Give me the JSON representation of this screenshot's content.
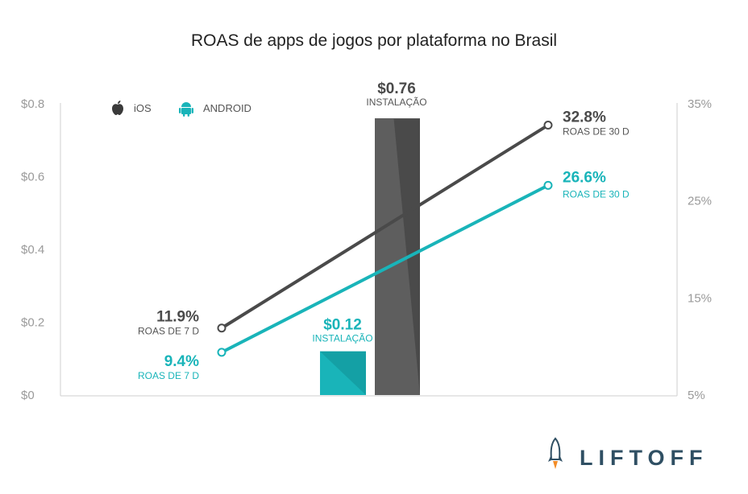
{
  "chart_data": {
    "type": "bar",
    "title": "ROAS de apps de jogos por plataforma no Brasil",
    "colors": {
      "ios": "#4a4a4a",
      "android": "#19b4b9"
    },
    "legend": {
      "placement": "top-left",
      "items": [
        {
          "name": "iOS",
          "icon": "apple-icon"
        },
        {
          "name": "ANDROID",
          "icon": "android-icon"
        }
      ]
    },
    "y_left": {
      "ticks": [
        "$0.8",
        "$0.6",
        "$0.4",
        "$0.2",
        "$0"
      ],
      "range": [
        0,
        0.8
      ]
    },
    "y_right": {
      "ticks": [
        "35%",
        "25%",
        "15%",
        "5%"
      ],
      "range": [
        5,
        35
      ]
    },
    "bars": [
      {
        "series": "ANDROID",
        "value": 0.12,
        "value_label": "$0.12",
        "label": "INSTALAÇÃO"
      },
      {
        "series": "iOS",
        "value": 0.76,
        "value_label": "$0.76",
        "label": "INSTALAÇÃO"
      }
    ],
    "lines": [
      {
        "series": "iOS",
        "points": [
          {
            "x": "7 D",
            "y": 11.9,
            "value_label": "11.9%",
            "label": "ROAS DE 7 D"
          },
          {
            "x": "30 D",
            "y": 32.8,
            "value_label": "32.8%",
            "label": "ROAS DE 30 D"
          }
        ]
      },
      {
        "series": "ANDROID",
        "points": [
          {
            "x": "7 D",
            "y": 9.4,
            "value_label": "9.4%",
            "label": "ROAS DE 7 D"
          },
          {
            "x": "30 D",
            "y": 26.6,
            "value_label": "26.6%",
            "label": "ROAS DE 30 D"
          }
        ]
      }
    ]
  },
  "logo": {
    "text": "LIFTOFF",
    "icon": "rocket-icon"
  }
}
